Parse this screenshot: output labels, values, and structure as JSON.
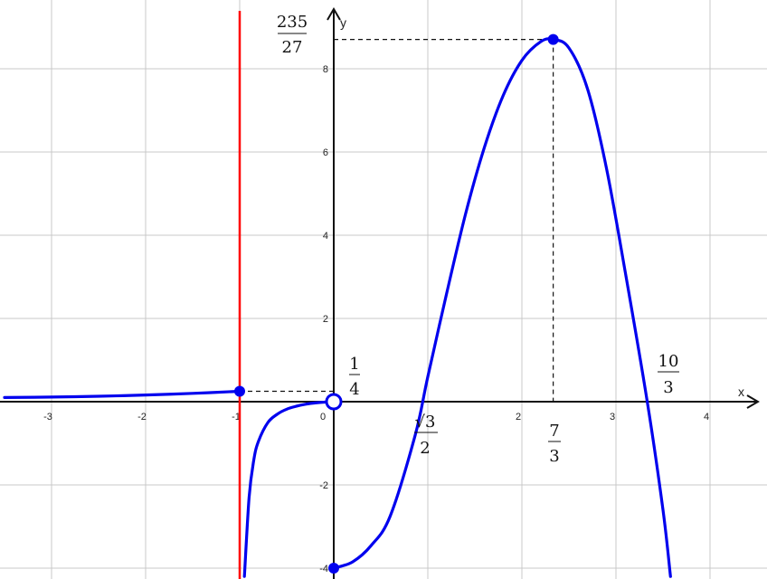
{
  "chart_data": {
    "type": "line",
    "title": "",
    "xlabel": "x",
    "ylabel": "y",
    "xlim": [
      -3.5,
      4.5
    ],
    "ylim": [
      -4.2,
      8.7
    ],
    "grid": true,
    "x_ticks": [
      {
        "value": -3,
        "label": "-3"
      },
      {
        "value": -2,
        "label": "-2"
      },
      {
        "value": -1,
        "label": "-1"
      },
      {
        "value": 0,
        "label": "0"
      },
      {
        "value": 2,
        "label": "2"
      },
      {
        "value": 3,
        "label": "3"
      },
      {
        "value": 4,
        "label": "4"
      }
    ],
    "y_ticks": [
      {
        "value": 8,
        "label": "8"
      },
      {
        "value": 6,
        "label": "6"
      },
      {
        "value": 4,
        "label": "4"
      },
      {
        "value": 2,
        "label": "2"
      },
      {
        "value": -2,
        "label": "-2"
      },
      {
        "value": -4,
        "label": "-4"
      }
    ],
    "asymptote": {
      "x": -1,
      "color": "#ff0000"
    },
    "curve_color": "#0000ee",
    "series": [
      {
        "points": [
          [
            -3.5,
            0.1
          ],
          [
            -3,
            0.11
          ],
          [
            -2.5,
            0.13
          ],
          [
            -2,
            0.16
          ],
          [
            -1.5,
            0.2
          ],
          [
            -1,
            0.25
          ]
        ]
      },
      {
        "points": [
          [
            -0.95,
            -4.2
          ],
          [
            -0.9,
            -2.3
          ],
          [
            -0.85,
            -1.4
          ],
          [
            -0.8,
            -0.95
          ],
          [
            -0.7,
            -0.5
          ],
          [
            -0.6,
            -0.3
          ],
          [
            -0.5,
            -0.18
          ],
          [
            -0.4,
            -0.11
          ],
          [
            -0.3,
            -0.06
          ],
          [
            -0.2,
            -0.03
          ],
          [
            -0.1,
            -0.01
          ],
          [
            0,
            0
          ]
        ]
      },
      {
        "points": [
          [
            0,
            -4
          ],
          [
            0.2,
            -3.85
          ],
          [
            0.4,
            -3.45
          ],
          [
            0.6,
            -2.75
          ],
          [
            0.866,
            -0.8
          ],
          [
            1.0,
            0.6
          ],
          [
            1.2,
            2.6
          ],
          [
            1.4,
            4.5
          ],
          [
            1.6,
            6.1
          ],
          [
            1.8,
            7.35
          ],
          [
            2.0,
            8.2
          ],
          [
            2.2,
            8.65
          ],
          [
            2.333,
            8.704
          ],
          [
            2.5,
            8.5
          ],
          [
            2.7,
            7.5
          ],
          [
            2.9,
            5.6
          ],
          [
            3.1,
            3.1
          ],
          [
            3.333,
            0
          ],
          [
            3.5,
            -2.6
          ],
          [
            3.58,
            -4.2
          ]
        ]
      }
    ],
    "points": [
      {
        "x": -1,
        "y": 0.25,
        "filled": true
      },
      {
        "x": 0,
        "y": 0,
        "filled": false
      },
      {
        "x": 0,
        "y": -4,
        "filled": true
      },
      {
        "x": 2.333,
        "y": 8.704,
        "filled": true
      }
    ],
    "annotations": {
      "top_label": {
        "num": "235",
        "den": "27"
      },
      "quarter_label": {
        "num": "1",
        "den": "4"
      },
      "root_label": {
        "num": "√3",
        "den": "2"
      },
      "max_x_label": {
        "num": "7",
        "den": "3"
      },
      "zero_label": {
        "num": "10",
        "den": "3"
      }
    }
  }
}
